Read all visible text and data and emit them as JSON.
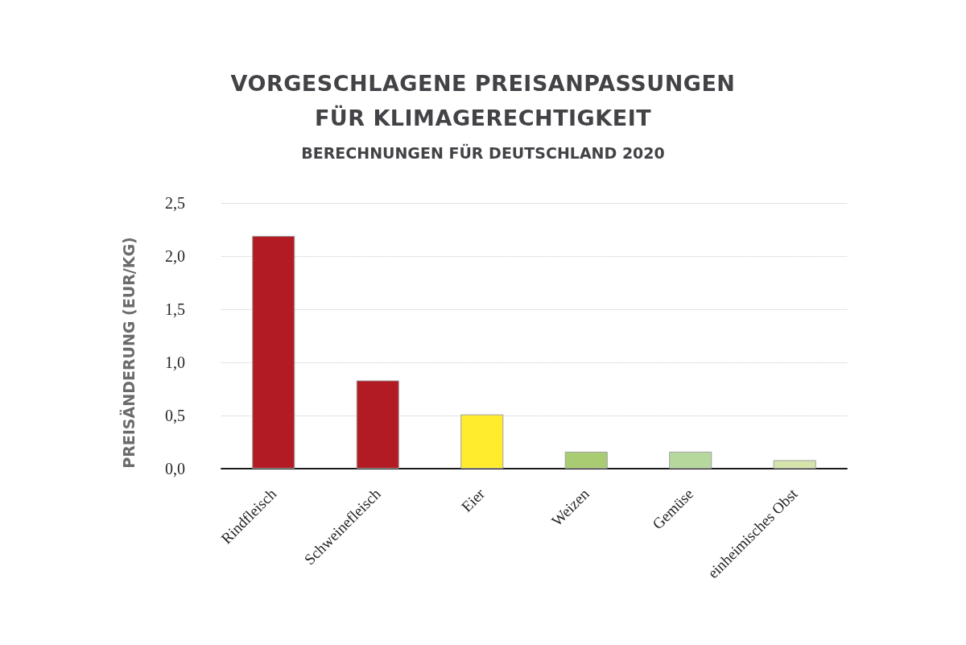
{
  "chart_data": {
    "type": "bar",
    "title": "VORGESCHLAGENE PREISANPASSUNGEN FÜR KLIMAGERECHTIGKEIT",
    "subtitle": "BERECHNUNGEN FÜR DEUTSCHLAND 2020",
    "ylabel": "PREISÄNDERUNG (EUR/KG)",
    "categories": [
      "Rindfleisch",
      "Schweinefleisch",
      "Eier",
      "Weizen",
      "Gemüse",
      "einheimisches Obst"
    ],
    "values": [
      2.19,
      0.83,
      0.51,
      0.16,
      0.16,
      0.08
    ],
    "colors": [
      "#b31b24",
      "#b31b24",
      "#ffec2c",
      "#a9cc72",
      "#b7d89c",
      "#d4e4ab"
    ],
    "ylim": [
      0,
      2.5
    ],
    "yticks": [
      {
        "value": 0,
        "label": "0,0"
      },
      {
        "value": 0.5,
        "label": "0,5"
      },
      {
        "value": 1,
        "label": "1,0"
      },
      {
        "value": 1.5,
        "label": "1,5"
      },
      {
        "value": 2,
        "label": "2,0"
      },
      {
        "value": 2.5,
        "label": "2,5"
      }
    ],
    "grid": "y"
  }
}
